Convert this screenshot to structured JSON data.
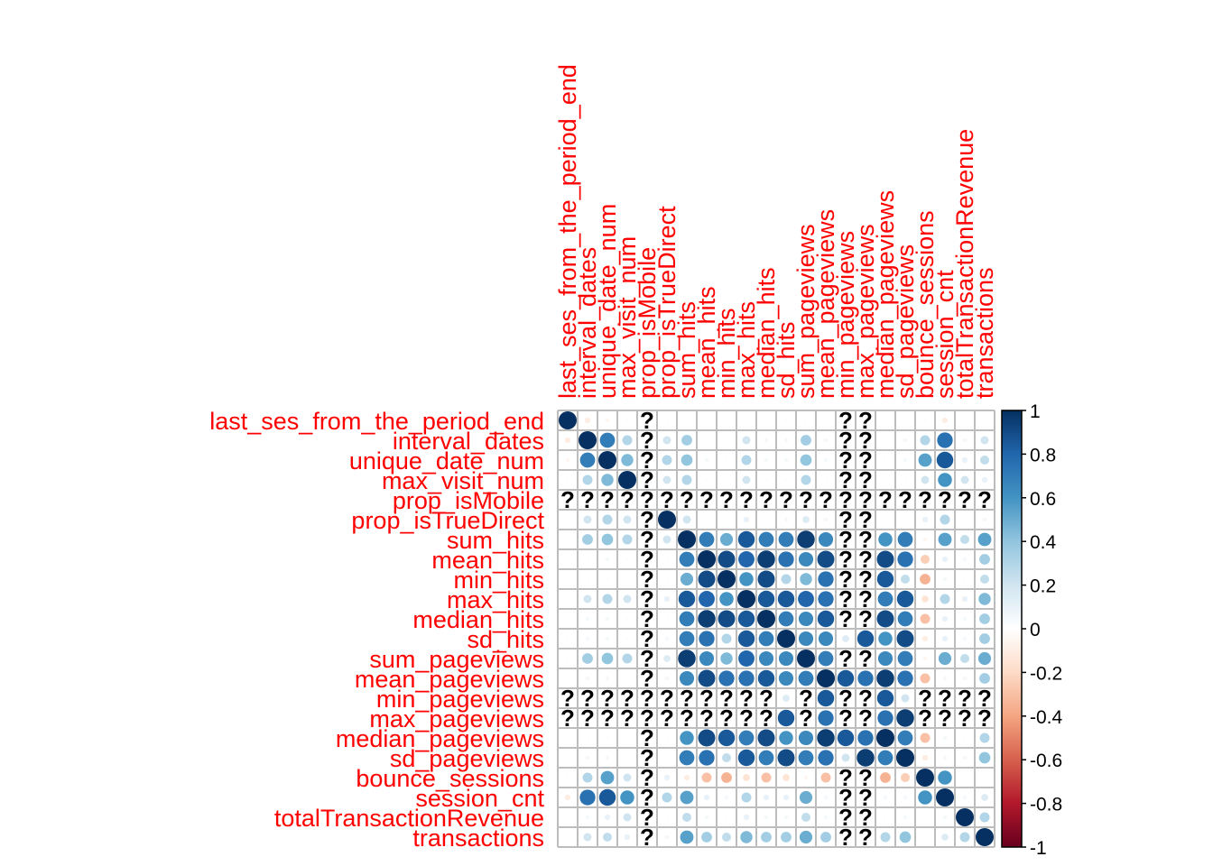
{
  "chart_data": {
    "type": "heatmap",
    "variables": [
      "last_ses_from_the_period_end",
      "interval_dates",
      "unique_date_num",
      "max_visit_num",
      "prop_isMobile",
      "prop_isTrueDirect",
      "sum_hits",
      "mean_hits",
      "min_hits",
      "max_hits",
      "median_hits",
      "sd_hits",
      "sum_pageviews",
      "mean_pageviews",
      "min_pageviews",
      "max_pageviews",
      "median_pageviews",
      "sd_pageviews",
      "bounce_sessions",
      "session_cnt",
      "totalTransactionRevenue",
      "transactions"
    ],
    "missing_marker": "?",
    "matrix": [
      [
        1,
        -0.1,
        -0.05,
        0.02,
        null,
        0.02,
        0,
        0,
        0,
        0,
        0,
        0.02,
        0.02,
        0,
        null,
        null,
        0,
        0,
        0.02,
        -0.1,
        0,
        0
      ],
      [
        -0.1,
        1,
        0.7,
        0.3,
        null,
        0.2,
        0.35,
        0.02,
        0.02,
        0.2,
        0.05,
        0.05,
        0.35,
        0.05,
        null,
        null,
        0.02,
        0.05,
        0.3,
        0.75,
        0.05,
        0.2
      ],
      [
        -0.05,
        0.7,
        1,
        0.45,
        null,
        0.3,
        0.4,
        0.05,
        0.02,
        0.3,
        0.05,
        0.05,
        0.4,
        0.05,
        null,
        null,
        0.02,
        0.05,
        0.55,
        0.85,
        0.1,
        0.25
      ],
      [
        0.02,
        0.3,
        0.45,
        1,
        null,
        0.2,
        0.3,
        0.02,
        0,
        0.2,
        0.02,
        0.02,
        0.3,
        0.02,
        null,
        null,
        0,
        0.02,
        0.2,
        0.6,
        0.2,
        0.1
      ],
      [
        null,
        null,
        null,
        null,
        null,
        null,
        null,
        null,
        null,
        null,
        null,
        null,
        null,
        null,
        null,
        null,
        null,
        null,
        null,
        null,
        null,
        null
      ],
      [
        0.02,
        0.2,
        0.3,
        0.2,
        null,
        1,
        0.2,
        0.02,
        0.02,
        0.1,
        0.02,
        0.05,
        0.15,
        0.05,
        null,
        null,
        0.02,
        0.02,
        0.1,
        0.3,
        0.02,
        0.05
      ],
      [
        0,
        0.35,
        0.4,
        0.3,
        null,
        0.2,
        1,
        0.7,
        0.5,
        0.85,
        0.7,
        0.7,
        0.95,
        0.65,
        null,
        null,
        0.6,
        0.7,
        -0.05,
        0.55,
        0.25,
        0.55
      ],
      [
        0,
        0.02,
        0.05,
        0.02,
        null,
        0.02,
        0.7,
        1,
        0.9,
        0.8,
        0.95,
        0.75,
        0.65,
        0.9,
        null,
        null,
        0.9,
        0.75,
        -0.25,
        0.1,
        0.05,
        0.35
      ],
      [
        0,
        0.02,
        0.02,
        0,
        null,
        0.02,
        0.5,
        0.9,
        1,
        0.6,
        0.9,
        0.3,
        0.45,
        0.75,
        null,
        null,
        0.85,
        0.25,
        -0.35,
        0.05,
        0.02,
        0.25
      ],
      [
        0,
        0.2,
        0.3,
        0.2,
        null,
        0.1,
        0.85,
        0.8,
        0.6,
        1,
        0.85,
        0.85,
        0.8,
        0.75,
        null,
        null,
        0.7,
        0.85,
        -0.15,
        0.3,
        0.1,
        0.45
      ],
      [
        0,
        0.05,
        0.05,
        0.02,
        null,
        0.02,
        0.7,
        0.95,
        0.9,
        0.85,
        1,
        0.7,
        0.65,
        0.85,
        null,
        null,
        0.9,
        0.7,
        -0.3,
        0.1,
        0.05,
        0.35
      ],
      [
        0.02,
        0.05,
        0.05,
        0.02,
        null,
        0.05,
        0.7,
        0.75,
        0.3,
        0.85,
        0.7,
        1,
        0.65,
        0.65,
        0.15,
        0.85,
        0.6,
        0.9,
        -0.1,
        0.1,
        0.05,
        0.35
      ],
      [
        0.02,
        0.35,
        0.4,
        0.3,
        null,
        0.15,
        0.95,
        0.65,
        0.45,
        0.8,
        0.65,
        0.65,
        1,
        0.7,
        null,
        null,
        0.65,
        0.7,
        -0.05,
        0.5,
        0.25,
        0.5
      ],
      [
        0,
        0.05,
        0.05,
        0.02,
        null,
        0.05,
        0.65,
        0.9,
        0.75,
        0.75,
        0.85,
        0.65,
        0.7,
        1,
        0.85,
        0.75,
        0.95,
        0.75,
        -0.3,
        0.05,
        0.05,
        0.35
      ],
      [
        null,
        null,
        null,
        null,
        null,
        null,
        null,
        null,
        null,
        null,
        null,
        0.15,
        null,
        0.85,
        null,
        null,
        0.85,
        0.2,
        null,
        null,
        null,
        null
      ],
      [
        null,
        null,
        null,
        null,
        null,
        null,
        null,
        null,
        null,
        null,
        null,
        0.85,
        null,
        0.75,
        null,
        null,
        0.75,
        0.95,
        null,
        null,
        null,
        null
      ],
      [
        0,
        0.02,
        0.02,
        0,
        null,
        0.02,
        0.6,
        0.9,
        0.85,
        0.7,
        0.9,
        0.6,
        0.65,
        0.95,
        0.85,
        0.75,
        1,
        0.7,
        -0.3,
        0.05,
        0.02,
        0.3
      ],
      [
        0,
        0.05,
        0.05,
        0.02,
        null,
        0.02,
        0.7,
        0.75,
        0.25,
        0.85,
        0.7,
        0.9,
        0.7,
        0.75,
        0.2,
        0.95,
        0.7,
        1,
        -0.1,
        0.05,
        0.05,
        0.4
      ],
      [
        0.02,
        0.3,
        0.55,
        0.2,
        null,
        0.1,
        -0.1,
        -0.3,
        -0.35,
        -0.15,
        -0.3,
        -0.15,
        -0.05,
        -0.3,
        null,
        null,
        -0.35,
        -0.25,
        1,
        0.6,
        0,
        0
      ],
      [
        -0.1,
        0.75,
        0.85,
        0.6,
        null,
        0.3,
        0.55,
        0.1,
        0.05,
        0.3,
        0.1,
        0.1,
        0.5,
        0.05,
        null,
        null,
        0.05,
        0.05,
        0.6,
        1,
        0.05,
        0.15
      ],
      [
        0,
        0.05,
        0.1,
        0.2,
        null,
        0.02,
        0.25,
        0.05,
        0.02,
        0.1,
        0.05,
        0.05,
        0.25,
        0.05,
        null,
        null,
        0.02,
        0.05,
        0,
        0.05,
        1,
        0.3
      ],
      [
        0,
        0.2,
        0.25,
        0.1,
        null,
        0.05,
        0.55,
        0.35,
        0.25,
        0.45,
        0.35,
        0.35,
        0.5,
        0.35,
        null,
        null,
        0.3,
        0.4,
        0,
        0.15,
        0.3,
        1
      ]
    ],
    "colorbar": {
      "ticks": [
        "1",
        "0.8",
        "0.6",
        "0.4",
        "0.2",
        "0",
        "-0.2",
        "-0.4",
        "-0.6",
        "-0.8",
        "-1"
      ],
      "range": [
        -1,
        1
      ],
      "colors": [
        "#67001f",
        "#b2182b",
        "#d6604d",
        "#f4a582",
        "#fddbc7",
        "#ffffff",
        "#d1e5f0",
        "#92c5de",
        "#4393c3",
        "#2166ac",
        "#053061"
      ]
    },
    "label_color": "#ff0000",
    "grid_color": "#bdbdbd"
  }
}
